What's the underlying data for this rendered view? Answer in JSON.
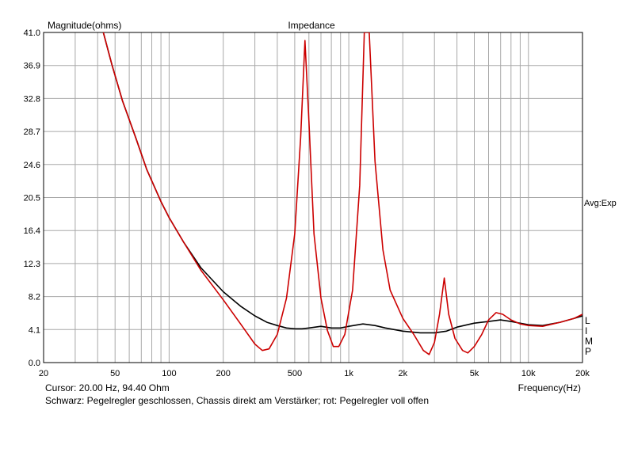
{
  "chart_data": {
    "type": "line",
    "title": "Impedance",
    "ylabel": "Magnitude(ohms)",
    "xlabel": "Frequency(Hz)",
    "x_scale": "log",
    "xlim": [
      20,
      20000
    ],
    "ylim": [
      0,
      41
    ],
    "grid": true,
    "y_ticks": [
      "0.0",
      "4.1",
      "8.2",
      "12.3",
      "16.4",
      "20.5",
      "24.6",
      "28.7",
      "32.8",
      "36.9",
      "41.0"
    ],
    "x_ticks": [
      {
        "value": 20,
        "label": "20"
      },
      {
        "value": 50,
        "label": "50"
      },
      {
        "value": 100,
        "label": "100"
      },
      {
        "value": 200,
        "label": "200"
      },
      {
        "value": 500,
        "label": "500"
      },
      {
        "value": 1000,
        "label": "1k"
      },
      {
        "value": 2000,
        "label": "2k"
      },
      {
        "value": 5000,
        "label": "5k"
      },
      {
        "value": 10000,
        "label": "10k"
      },
      {
        "value": 20000,
        "label": "20k"
      }
    ],
    "side_label": "Avg:Exp",
    "right_markers": [
      "L",
      "I",
      "M",
      "P"
    ],
    "cursor_text": "Cursor: 20.00 Hz, 94.40 Ohm",
    "caption": "Schwarz: Pegelregler geschlossen, Chassis direkt am Verstärker; rot: Pegelregler voll offen",
    "series": [
      {
        "color": "#000000",
        "points": [
          [
            43,
            41.0
          ],
          [
            48,
            37.0
          ],
          [
            55,
            32.5
          ],
          [
            65,
            28.0
          ],
          [
            75,
            24.0
          ],
          [
            90,
            20.0
          ],
          [
            100,
            18.0
          ],
          [
            120,
            15.0
          ],
          [
            150,
            11.8
          ],
          [
            200,
            8.8
          ],
          [
            250,
            7.0
          ],
          [
            300,
            5.8
          ],
          [
            350,
            5.0
          ],
          [
            400,
            4.6
          ],
          [
            450,
            4.3
          ],
          [
            500,
            4.2
          ],
          [
            550,
            4.2
          ],
          [
            600,
            4.3
          ],
          [
            700,
            4.5
          ],
          [
            800,
            4.3
          ],
          [
            900,
            4.3
          ],
          [
            1000,
            4.5
          ],
          [
            1200,
            4.8
          ],
          [
            1400,
            4.6
          ],
          [
            1600,
            4.3
          ],
          [
            2000,
            3.9
          ],
          [
            2500,
            3.7
          ],
          [
            3000,
            3.7
          ],
          [
            3500,
            3.9
          ],
          [
            4000,
            4.4
          ],
          [
            5000,
            4.9
          ],
          [
            6000,
            5.1
          ],
          [
            7000,
            5.3
          ],
          [
            8000,
            5.1
          ],
          [
            10000,
            4.7
          ],
          [
            12000,
            4.6
          ],
          [
            15000,
            5.0
          ],
          [
            18000,
            5.5
          ],
          [
            20000,
            5.8
          ]
        ]
      },
      {
        "color": "#cc0000",
        "points": [
          [
            43,
            41.0
          ],
          [
            48,
            37.0
          ],
          [
            55,
            32.5
          ],
          [
            65,
            28.0
          ],
          [
            75,
            24.0
          ],
          [
            90,
            20.0
          ],
          [
            100,
            18.0
          ],
          [
            120,
            15.0
          ],
          [
            150,
            11.5
          ],
          [
            200,
            7.8
          ],
          [
            250,
            4.8
          ],
          [
            300,
            2.3
          ],
          [
            330,
            1.5
          ],
          [
            360,
            1.7
          ],
          [
            400,
            3.5
          ],
          [
            450,
            8.0
          ],
          [
            500,
            16.0
          ],
          [
            540,
            28.0
          ],
          [
            570,
            40.0
          ],
          [
            600,
            30.0
          ],
          [
            640,
            16.0
          ],
          [
            700,
            8.0
          ],
          [
            760,
            4.0
          ],
          [
            820,
            2.0
          ],
          [
            880,
            2.0
          ],
          [
            950,
            3.5
          ],
          [
            1050,
            9.0
          ],
          [
            1150,
            22.0
          ],
          [
            1220,
            41.0
          ],
          [
            1300,
            41.0
          ],
          [
            1400,
            25.0
          ],
          [
            1550,
            14.0
          ],
          [
            1700,
            9.0
          ],
          [
            2000,
            5.5
          ],
          [
            2300,
            3.5
          ],
          [
            2600,
            1.5
          ],
          [
            2800,
            1.0
          ],
          [
            3000,
            2.5
          ],
          [
            3200,
            6.0
          ],
          [
            3400,
            10.5
          ],
          [
            3600,
            6.0
          ],
          [
            3900,
            3.0
          ],
          [
            4300,
            1.5
          ],
          [
            4600,
            1.2
          ],
          [
            5000,
            2.0
          ],
          [
            5500,
            3.5
          ],
          [
            6000,
            5.3
          ],
          [
            6600,
            6.2
          ],
          [
            7200,
            6.0
          ],
          [
            8000,
            5.3
          ],
          [
            9000,
            4.8
          ],
          [
            10000,
            4.6
          ],
          [
            12000,
            4.5
          ],
          [
            15000,
            5.0
          ],
          [
            18000,
            5.5
          ],
          [
            20000,
            6.0
          ]
        ]
      }
    ]
  }
}
